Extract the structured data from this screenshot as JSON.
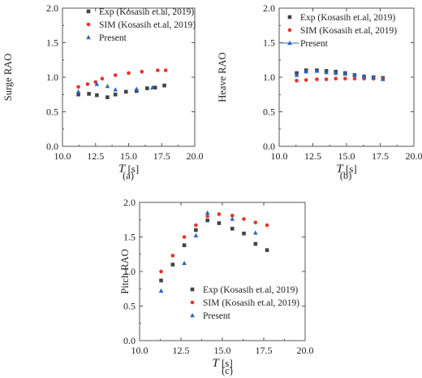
{
  "chart_data": [
    {
      "type": "scatter",
      "panel_label": "(a)",
      "xlabel": "T [s]",
      "ylabel": "Surge RAO",
      "xlim": [
        10.0,
        20.0
      ],
      "ylim": [
        0.0,
        2.0
      ],
      "xticks": [
        "10.0",
        "12.5",
        "15.0",
        "17.5",
        "20.0"
      ],
      "yticks": [
        "0.0",
        "0.5",
        "1.0",
        "1.5",
        "2.0"
      ],
      "legend_position": "top-left",
      "series": [
        {
          "name": "Exp (Kosasih et.al, 2019)",
          "color": "#444444",
          "marker": "square",
          "x": [
            11.2,
            12.0,
            12.6,
            13.4,
            14.0,
            14.8,
            15.6,
            16.4,
            17.0,
            17.7
          ],
          "y": [
            0.75,
            0.76,
            0.74,
            0.71,
            0.75,
            0.79,
            0.8,
            0.84,
            0.85,
            0.88
          ]
        },
        {
          "name": "SIM (Kosasih et.al, 2019)",
          "color": "#e8322d",
          "marker": "circle",
          "x": [
            11.2,
            11.9,
            12.5,
            13.0,
            14.0,
            15.0,
            16.0,
            17.2,
            17.8
          ],
          "y": [
            0.86,
            0.9,
            0.93,
            0.98,
            1.03,
            1.06,
            1.08,
            1.1,
            1.1
          ]
        },
        {
          "name": "Present",
          "color": "#2a66c8",
          "marker": "triangle",
          "x": [
            11.2,
            12.6,
            13.4,
            14.0,
            15.6,
            16.8
          ],
          "y": [
            0.79,
            0.9,
            0.87,
            0.82,
            0.83,
            0.85
          ]
        }
      ]
    },
    {
      "type": "scatter",
      "panel_label": "(b)",
      "xlabel": "T [s]",
      "ylabel": "Heave RAO",
      "xlim": [
        10.0,
        20.0
      ],
      "ylim": [
        0.0,
        2.0
      ],
      "xticks": [
        "10.0",
        "12.5",
        "15.0",
        "17.5",
        "20.0"
      ],
      "yticks": [
        "0.0",
        "0.5",
        "1.0",
        "1.5",
        "2.0"
      ],
      "legend_position": "top-right",
      "series": [
        {
          "name": "Exp (Kosasih et.al, 2019)",
          "color": "#444444",
          "marker": "square",
          "x": [
            11.3,
            12.0,
            12.8,
            13.5,
            14.2,
            14.9,
            15.6,
            16.3,
            17.0,
            17.7
          ],
          "y": [
            1.06,
            1.1,
            1.1,
            1.09,
            1.08,
            1.06,
            1.03,
            1.01,
            1.0,
            0.99
          ]
        },
        {
          "name": "SIM (Kosasih et.al, 2019)",
          "color": "#e8322d",
          "marker": "circle",
          "x": [
            11.3,
            12.0,
            12.8,
            13.5,
            14.2,
            14.9,
            15.6,
            16.3,
            17.0,
            17.7
          ],
          "y": [
            0.95,
            0.96,
            0.97,
            0.97,
            0.98,
            0.98,
            0.98,
            0.98,
            0.98,
            0.98
          ]
        },
        {
          "name": "Present",
          "color": "#2a66c8",
          "marker": "triangle",
          "x": [
            11.3,
            12.0,
            12.8,
            13.5,
            14.2,
            14.9,
            15.6,
            16.3,
            17.0,
            17.7
          ],
          "y": [
            1.03,
            1.08,
            1.09,
            1.07,
            1.06,
            1.05,
            1.03,
            1.01,
            0.99,
            0.97
          ]
        }
      ]
    },
    {
      "type": "scatter",
      "panel_label": "(c)",
      "xlabel": "T [s]",
      "ylabel": "Pitch RAO",
      "xlim": [
        10.0,
        20.0
      ],
      "ylim": [
        0.0,
        2.0
      ],
      "xticks": [
        "10.0",
        "12.5",
        "15.0",
        "17.5",
        "20.0"
      ],
      "yticks": [
        "0.0",
        "0.5",
        "1.0",
        "1.5",
        "2.0"
      ],
      "legend_position": "bottom-right",
      "series": [
        {
          "name": "Exp (Kosasih et.al, 2019)",
          "color": "#444444",
          "marker": "square",
          "x": [
            11.3,
            12.0,
            12.7,
            13.4,
            14.1,
            14.8,
            15.6,
            16.3,
            17.0,
            17.7
          ],
          "y": [
            0.87,
            1.1,
            1.38,
            1.6,
            1.74,
            1.7,
            1.62,
            1.55,
            1.4,
            1.31
          ]
        },
        {
          "name": "SIM (Kosasih et.al, 2019)",
          "color": "#e8322d",
          "marker": "circle",
          "x": [
            11.3,
            12.0,
            12.7,
            13.4,
            14.1,
            14.8,
            15.6,
            16.3,
            17.0,
            17.7
          ],
          "y": [
            1.0,
            1.23,
            1.5,
            1.67,
            1.8,
            1.83,
            1.81,
            1.76,
            1.71,
            1.67
          ]
        },
        {
          "name": "Present",
          "color": "#2a66c8",
          "marker": "triangle",
          "x": [
            11.3,
            12.7,
            13.4,
            14.1,
            15.6,
            17.0
          ],
          "y": [
            0.72,
            1.12,
            1.52,
            1.85,
            1.76,
            1.56
          ]
        }
      ]
    }
  ]
}
